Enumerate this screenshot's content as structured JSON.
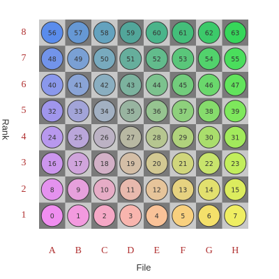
{
  "board": {
    "files": [
      "A",
      "B",
      "C",
      "D",
      "E",
      "F",
      "G",
      "H"
    ],
    "ranks": [
      "1",
      "2",
      "3",
      "4",
      "5",
      "6",
      "7",
      "8"
    ],
    "square_colors": {
      "light": "#c8c8c8",
      "dark": "#7a7a7a"
    },
    "cells": [
      {
        "n": "0",
        "color": "#f08ef0"
      },
      {
        "n": "1",
        "color": "#f39adf"
      },
      {
        "n": "2",
        "color": "#f5a8c6"
      },
      {
        "n": "3",
        "color": "#f8b5ae"
      },
      {
        "n": "4",
        "color": "#f9c298"
      },
      {
        "n": "5",
        "color": "#f8d07e"
      },
      {
        "n": "6",
        "color": "#f4e06a"
      },
      {
        "n": "7",
        "color": "#efee62"
      },
      {
        "n": "8",
        "color": "#e492ee"
      },
      {
        "n": "9",
        "color": "#e6a0dc"
      },
      {
        "n": "10",
        "color": "#e6acc6"
      },
      {
        "n": "11",
        "color": "#e8b9ad"
      },
      {
        "n": "12",
        "color": "#e6c49a"
      },
      {
        "n": "13",
        "color": "#e6d280"
      },
      {
        "n": "14",
        "color": "#e2e06e"
      },
      {
        "n": "15",
        "color": "#dcec5e"
      },
      {
        "n": "16",
        "color": "#cc96ee"
      },
      {
        "n": "17",
        "color": "#d0a4dc"
      },
      {
        "n": "18",
        "color": "#d2b0c6"
      },
      {
        "n": "19",
        "color": "#d4bea6"
      },
      {
        "n": "20",
        "color": "#d2c892"
      },
      {
        "n": "21",
        "color": "#d0d67c"
      },
      {
        "n": "22",
        "color": "#c8e46c"
      },
      {
        "n": "23",
        "color": "#c2ee5c"
      },
      {
        "n": "24",
        "color": "#b898ee"
      },
      {
        "n": "25",
        "color": "#baa6da"
      },
      {
        "n": "26",
        "color": "#bcb2c4"
      },
      {
        "n": "27",
        "color": "#b8b8a2"
      },
      {
        "n": "28",
        "color": "#b6c690"
      },
      {
        "n": "29",
        "color": "#b0d27c"
      },
      {
        "n": "30",
        "color": "#aade6c"
      },
      {
        "n": "31",
        "color": "#a2ea5c"
      },
      {
        "n": "32",
        "color": "#a096ec"
      },
      {
        "n": "33",
        "color": "#a2a4d8"
      },
      {
        "n": "34",
        "color": "#a2b0c2"
      },
      {
        "n": "35",
        "color": "#98b4a0"
      },
      {
        "n": "36",
        "color": "#96c490"
      },
      {
        "n": "37",
        "color": "#8ed07c"
      },
      {
        "n": "38",
        "color": "#86dc6c"
      },
      {
        "n": "39",
        "color": "#7ee85c"
      },
      {
        "n": "40",
        "color": "#8a98ec"
      },
      {
        "n": "41",
        "color": "#8aa4d6"
      },
      {
        "n": "42",
        "color": "#8aaec0"
      },
      {
        "n": "43",
        "color": "#7cb29e"
      },
      {
        "n": "44",
        "color": "#7cc28e"
      },
      {
        "n": "45",
        "color": "#72cc7c"
      },
      {
        "n": "46",
        "color": "#6ad86c"
      },
      {
        "n": "47",
        "color": "#62e45c"
      },
      {
        "n": "48",
        "color": "#7294ea"
      },
      {
        "n": "49",
        "color": "#7aa0d4"
      },
      {
        "n": "50",
        "color": "#78aabe"
      },
      {
        "n": "51",
        "color": "#66ae9c"
      },
      {
        "n": "52",
        "color": "#62bc8c"
      },
      {
        "n": "53",
        "color": "#5ac67a"
      },
      {
        "n": "54",
        "color": "#52d26c"
      },
      {
        "n": "55",
        "color": "#4ade5c"
      },
      {
        "n": "56",
        "color": "#5a8cec"
      },
      {
        "n": "57",
        "color": "#6698d4"
      },
      {
        "n": "58",
        "color": "#64a2be"
      },
      {
        "n": "59",
        "color": "#52a69a"
      },
      {
        "n": "60",
        "color": "#4ab48a"
      },
      {
        "n": "61",
        "color": "#44be7a"
      },
      {
        "n": "62",
        "color": "#3cca6a"
      },
      {
        "n": "63",
        "color": "#36d65a"
      }
    ]
  },
  "axes": {
    "x_title": "File",
    "y_title": "Rank"
  }
}
